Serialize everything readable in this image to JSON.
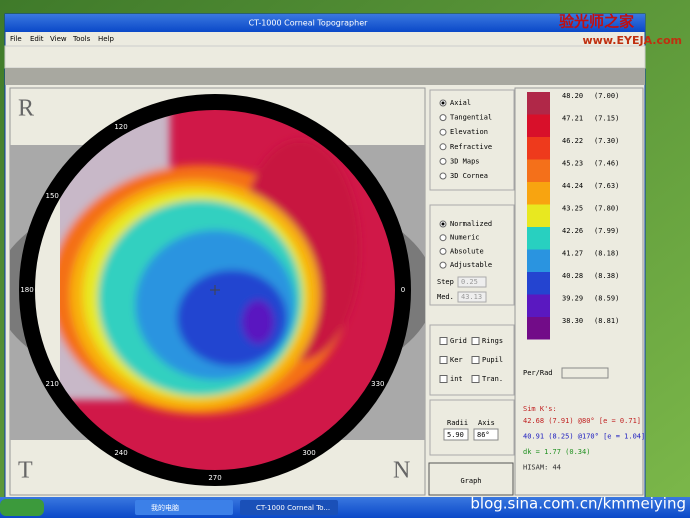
{
  "window": {
    "title": "CT-1000 Corneal Topographer"
  },
  "menu": [
    "File",
    "Edit",
    "View",
    "Tools",
    "Help"
  ],
  "map": {
    "corner_labels": [
      "R",
      "T",
      "N"
    ],
    "angles": [
      "120",
      "150",
      "180",
      "210",
      "240",
      "270",
      "300",
      "330",
      "0"
    ]
  },
  "map_types": {
    "options": [
      "Axial",
      "Tangential",
      "Elevation",
      "Refractive",
      "3D Maps",
      "3D Cornea"
    ],
    "selected": 0
  },
  "scale_modes": {
    "options": [
      "Normalized",
      "Numeric",
      "Absolute",
      "Adjustable"
    ],
    "selected": 0,
    "step_label": "Step",
    "step": "0.25",
    "med_label": "Med.",
    "med": "43.13"
  },
  "overlays": [
    "Grid",
    "Rings",
    "Ker",
    "Pupil",
    "int",
    "Tran."
  ],
  "radii": {
    "radii_label": "Radii",
    "axis_label": "Axis",
    "radii": "5.90",
    "axis": "86°"
  },
  "graph_button": "Graph",
  "scale": {
    "colors": [
      "#b02848",
      "#d8102a",
      "#ee3a1c",
      "#f4701a",
      "#f8a410",
      "#e8e820",
      "#28d0c0",
      "#2a94e0",
      "#2444d0",
      "#5a18c0",
      "#720c88"
    ],
    "power": [
      "48.20",
      "47.21",
      "46.22",
      "45.23",
      "44.24",
      "43.25",
      "42.26",
      "41.27",
      "40.28",
      "39.29",
      "38.30"
    ],
    "radius": [
      "(7.00)",
      "(7.15)",
      "(7.30)",
      "(7.46)",
      "(7.63)",
      "(7.80)",
      "(7.99)",
      "(8.18)",
      "(8.38)",
      "(8.59)",
      "(8.81)"
    ]
  },
  "per_rad": "Per/Rad",
  "sim_k": {
    "title": "Sim K's:",
    "lines": [
      {
        "text": "42.68 (7.91) @80°  [e = 0.71]",
        "color": "#c02020"
      },
      {
        "text": "40.91 (8.25) @170°  [e = 1.04]",
        "color": "#2020c0"
      },
      {
        "text": "dk = 1.77 (0.34)",
        "color": "#209020"
      },
      {
        "text": "HISAM: 44",
        "color": "#303030"
      }
    ]
  },
  "taskbar": {
    "tasks": [
      "我的电脑",
      "CT-1000 Corneal To..."
    ]
  },
  "watermarks": [
    "验光师之家",
    "www.EYEJA.com",
    "blog.sina.com.cn/kmmeiying"
  ]
}
